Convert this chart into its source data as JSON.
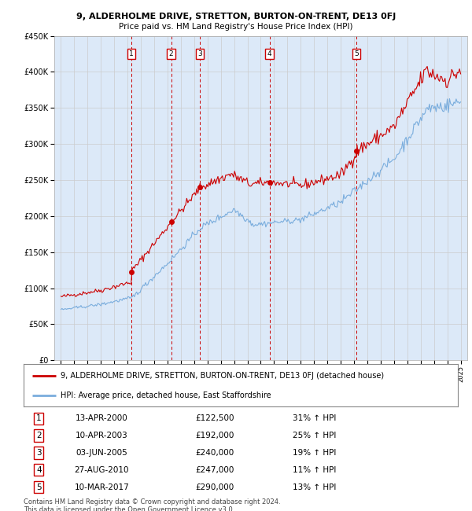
{
  "title": "9, ALDERHOLME DRIVE, STRETTON, BURTON-ON-TRENT, DE13 0FJ",
  "subtitle": "Price paid vs. HM Land Registry's House Price Index (HPI)",
  "red_label": "9, ALDERHOLME DRIVE, STRETTON, BURTON-ON-TRENT, DE13 0FJ (detached house)",
  "blue_label": "HPI: Average price, detached house, East Staffordshire",
  "footer_line1": "Contains HM Land Registry data © Crown copyright and database right 2024.",
  "footer_line2": "This data is licensed under the Open Government Licence v3.0.",
  "transactions": [
    {
      "num": 1,
      "date": "13-APR-2000",
      "price": "£122,500",
      "pct": "31% ↑ HPI"
    },
    {
      "num": 2,
      "date": "10-APR-2003",
      "price": "£192,000",
      "pct": "25% ↑ HPI"
    },
    {
      "num": 3,
      "date": "03-JUN-2005",
      "price": "£240,000",
      "pct": "19% ↑ HPI"
    },
    {
      "num": 4,
      "date": "27-AUG-2010",
      "price": "£247,000",
      "pct": "11% ↑ HPI"
    },
    {
      "num": 5,
      "date": "10-MAR-2017",
      "price": "£290,000",
      "pct": "13% ↑ HPI"
    }
  ],
  "transaction_x": [
    2000.28,
    2003.27,
    2005.42,
    2010.65,
    2017.19
  ],
  "transaction_y": [
    122500,
    192000,
    240000,
    247000,
    290000
  ],
  "vline_x": [
    2000.28,
    2003.27,
    2005.42,
    2010.65,
    2017.19
  ],
  "ylim": [
    0,
    450000
  ],
  "xlim_start": 1994.5,
  "xlim_end": 2025.5,
  "bg_color": "#dce9f8",
  "plot_bg": "#ffffff",
  "red_color": "#cc0000",
  "blue_color": "#7aaddd",
  "grid_color": "#cccccc",
  "title_fontsize": 8,
  "subtitle_fontsize": 7.5,
  "tick_fontsize": 6,
  "ytick_fontsize": 7,
  "legend_fontsize": 7,
  "table_fontsize": 7.5,
  "footer_fontsize": 6
}
